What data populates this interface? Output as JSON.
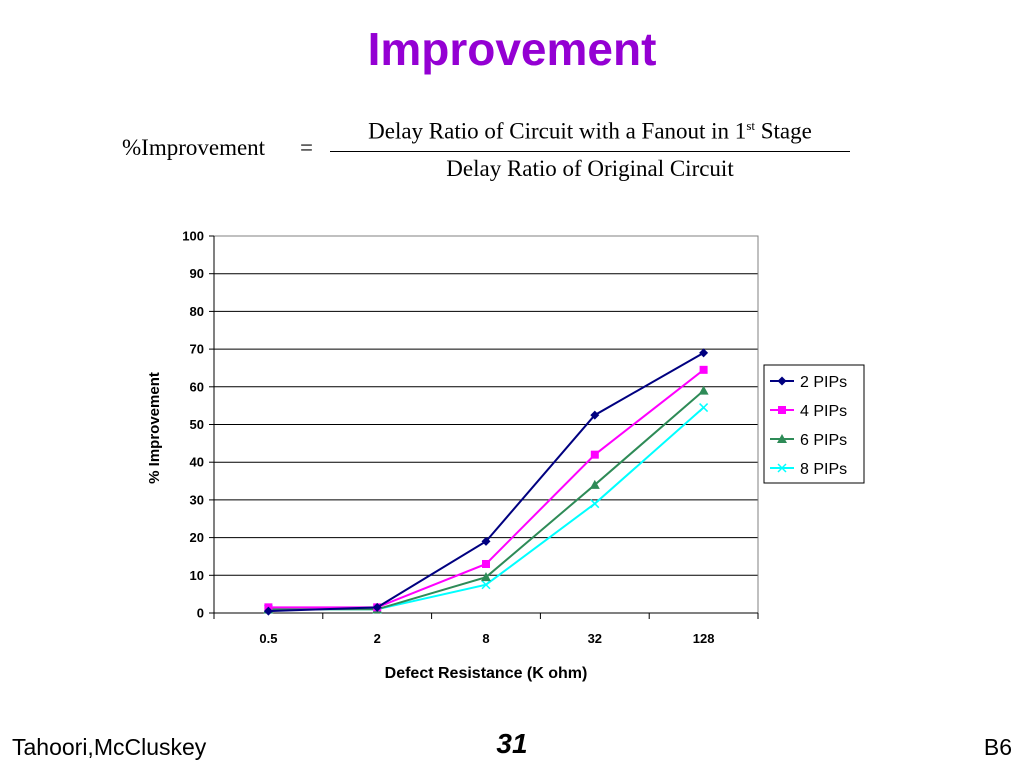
{
  "slide": {
    "title": "Improvement",
    "footer_left": "Tahoori,McCluskey",
    "footer_page": "31",
    "footer_right": "B6",
    "title_color": "#9400d3"
  },
  "formula": {
    "lhs": "%Improvement",
    "equals": "=",
    "numerator_pre": "Delay Ratio of Circuit with a Fanout in 1",
    "numerator_sup": "st",
    "numerator_post": " Stage",
    "denominator": "Delay Ratio of Original Circuit"
  },
  "chart_data": {
    "type": "line",
    "title": "",
    "xlabel": "Defect Resistance (K ohm)",
    "ylabel": "% Improvement",
    "categories": [
      "0.5",
      "2",
      "8",
      "32",
      "128"
    ],
    "ylim": [
      0,
      100
    ],
    "yticks": [
      0,
      10,
      20,
      30,
      40,
      50,
      60,
      70,
      80,
      90,
      100
    ],
    "grid": "horizontal",
    "legend_position": "right",
    "series": [
      {
        "name": "2 PIPs",
        "color": "#000080",
        "marker": "diamond",
        "values": [
          0.5,
          1.5,
          19,
          52.5,
          69
        ]
      },
      {
        "name": "4 PIPs",
        "color": "#ff00ff",
        "marker": "square",
        "values": [
          1.5,
          1.5,
          13,
          42,
          64.5
        ]
      },
      {
        "name": "6 PIPs",
        "color": "#2e8b57",
        "marker": "triangle",
        "values": [
          1,
          1,
          9.5,
          34,
          59
        ]
      },
      {
        "name": "8 PIPs",
        "color": "#00ffff",
        "marker": "x",
        "values": [
          1,
          1,
          7.5,
          29,
          54.5
        ]
      }
    ]
  }
}
